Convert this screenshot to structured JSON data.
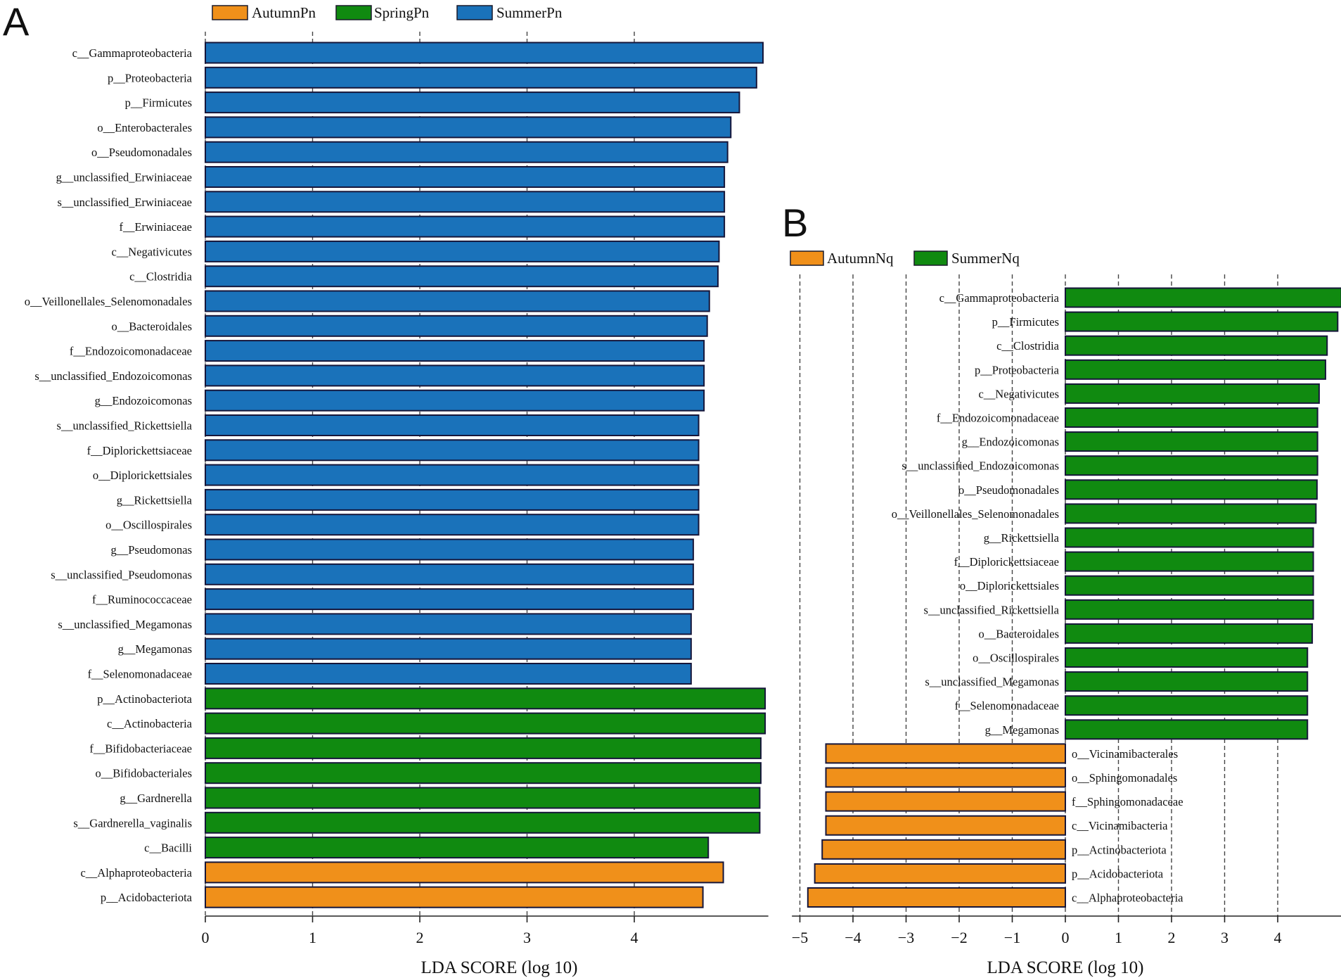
{
  "panels": {
    "A": {
      "label": "A"
    },
    "B": {
      "label": "B"
    }
  },
  "chart_data": [
    {
      "panel": "A",
      "type": "bar",
      "orientation": "horizontal",
      "legend_position": "top",
      "legend": [
        {
          "name": "AutumnPn",
          "color": "#F0901A"
        },
        {
          "name": "SpringPn",
          "color": "#108A10"
        },
        {
          "name": "SummerPn",
          "color": "#1A72BA"
        }
      ],
      "xlabel": "LDA SCORE (log 10)",
      "xlim": [
        0,
        5.25
      ],
      "xticks": [
        0,
        1,
        2,
        3,
        4
      ],
      "xtick_labels": [
        "0",
        "1",
        "2",
        "3",
        "4"
      ],
      "grid": true,
      "bars": [
        {
          "label": "c__Gammaproteobacteria",
          "value": 5.2,
          "group": "SummerPn"
        },
        {
          "label": "p__Proteobacteria",
          "value": 5.14,
          "group": "SummerPn"
        },
        {
          "label": "p__Firmicutes",
          "value": 4.98,
          "group": "SummerPn"
        },
        {
          "label": "o__Enterobacterales",
          "value": 4.9,
          "group": "SummerPn"
        },
        {
          "label": "o__Pseudomonadales",
          "value": 4.87,
          "group": "SummerPn"
        },
        {
          "label": "g__unclassified_Erwiniaceae",
          "value": 4.84,
          "group": "SummerPn"
        },
        {
          "label": "s__unclassified_Erwiniaceae",
          "value": 4.84,
          "group": "SummerPn"
        },
        {
          "label": "f__Erwiniaceae",
          "value": 4.84,
          "group": "SummerPn"
        },
        {
          "label": "c__Negativicutes",
          "value": 4.79,
          "group": "SummerPn"
        },
        {
          "label": "c__Clostridia",
          "value": 4.78,
          "group": "SummerPn"
        },
        {
          "label": "o__Veillonellales_Selenomonadales",
          "value": 4.7,
          "group": "SummerPn"
        },
        {
          "label": "o__Bacteroidales",
          "value": 4.68,
          "group": "SummerPn"
        },
        {
          "label": "f__Endozoicomonadaceae",
          "value": 4.65,
          "group": "SummerPn"
        },
        {
          "label": "s__unclassified_Endozoicomonas",
          "value": 4.65,
          "group": "SummerPn"
        },
        {
          "label": "g__Endozoicomonas",
          "value": 4.65,
          "group": "SummerPn"
        },
        {
          "label": "s__unclassified_Rickettsiella",
          "value": 4.6,
          "group": "SummerPn"
        },
        {
          "label": "f__Diplorickettsiaceae",
          "value": 4.6,
          "group": "SummerPn"
        },
        {
          "label": "o__Diplorickettsiales",
          "value": 4.6,
          "group": "SummerPn"
        },
        {
          "label": "g__Rickettsiella",
          "value": 4.6,
          "group": "SummerPn"
        },
        {
          "label": "o__Oscillospirales",
          "value": 4.6,
          "group": "SummerPn"
        },
        {
          "label": "g__Pseudomonas",
          "value": 4.55,
          "group": "SummerPn"
        },
        {
          "label": "s__unclassified_Pseudomonas",
          "value": 4.55,
          "group": "SummerPn"
        },
        {
          "label": "f__Ruminococcaceae",
          "value": 4.55,
          "group": "SummerPn"
        },
        {
          "label": "s__unclassified_Megamonas",
          "value": 4.53,
          "group": "SummerPn"
        },
        {
          "label": "g__Megamonas",
          "value": 4.53,
          "group": "SummerPn"
        },
        {
          "label": "f__Selenomonadaceae",
          "value": 4.53,
          "group": "SummerPn"
        },
        {
          "label": "p__Actinobacteriota",
          "value": 5.22,
          "group": "SpringPn"
        },
        {
          "label": "c__Actinobacteria",
          "value": 5.22,
          "group": "SpringPn"
        },
        {
          "label": "f__Bifidobacteriaceae",
          "value": 5.18,
          "group": "SpringPn"
        },
        {
          "label": "o__Bifidobacteriales",
          "value": 5.18,
          "group": "SpringPn"
        },
        {
          "label": "g__Gardnerella",
          "value": 5.17,
          "group": "SpringPn"
        },
        {
          "label": "s__Gardnerella_vaginalis",
          "value": 5.17,
          "group": "SpringPn"
        },
        {
          "label": "c__Bacilli",
          "value": 4.69,
          "group": "SpringPn"
        },
        {
          "label": "c__Alphaproteobacteria",
          "value": 4.83,
          "group": "AutumnPn"
        },
        {
          "label": "p__Acidobacteriota",
          "value": 4.64,
          "group": "AutumnPn"
        }
      ]
    },
    {
      "panel": "B",
      "type": "bar",
      "orientation": "horizontal",
      "legend_position": "top-left",
      "legend": [
        {
          "name": "AutumnNq",
          "color": "#F0901A"
        },
        {
          "name": "SummerNq",
          "color": "#108A10"
        }
      ],
      "xlabel": "LDA SCORE (log 10)",
      "xlim": [
        -5.15,
        5.2
      ],
      "xticks": [
        -5,
        -4,
        -3,
        -2,
        -1,
        0,
        1,
        2,
        3,
        4
      ],
      "xtick_labels": [
        "−5",
        "−4",
        "−3",
        "−2",
        "−1",
        "0",
        "1",
        "2",
        "3",
        "4"
      ],
      "grid": true,
      "bars": [
        {
          "label": "c__Gammaproteobacteria",
          "value": 5.2,
          "group": "SummerNq"
        },
        {
          "label": "p__Firmicutes",
          "value": 5.13,
          "group": "SummerNq"
        },
        {
          "label": "c__Clostridia",
          "value": 4.93,
          "group": "SummerNq"
        },
        {
          "label": "p__Proteobacteria",
          "value": 4.9,
          "group": "SummerNq"
        },
        {
          "label": "c__Negativicutes",
          "value": 4.78,
          "group": "SummerNq"
        },
        {
          "label": "f__Endozoicomonadaceae",
          "value": 4.75,
          "group": "SummerNq"
        },
        {
          "label": "g__Endozoicomonas",
          "value": 4.75,
          "group": "SummerNq"
        },
        {
          "label": "s__unclassified_Endozoicomonas",
          "value": 4.75,
          "group": "SummerNq"
        },
        {
          "label": "o__Pseudomonadales",
          "value": 4.74,
          "group": "SummerNq"
        },
        {
          "label": "o__Veillonellales_Selenomonadales",
          "value": 4.72,
          "group": "SummerNq"
        },
        {
          "label": "g__Rickettsiella",
          "value": 4.67,
          "group": "SummerNq"
        },
        {
          "label": "f__Diplorickettsiaceae",
          "value": 4.67,
          "group": "SummerNq"
        },
        {
          "label": "o__Diplorickettsiales",
          "value": 4.67,
          "group": "SummerNq"
        },
        {
          "label": "s__unclassified_Rickettsiella",
          "value": 4.67,
          "group": "SummerNq"
        },
        {
          "label": "o__Bacteroidales",
          "value": 4.65,
          "group": "SummerNq"
        },
        {
          "label": "o__Oscillospirales",
          "value": 4.56,
          "group": "SummerNq"
        },
        {
          "label": "s__unclassified_Megamonas",
          "value": 4.56,
          "group": "SummerNq"
        },
        {
          "label": "f__Selenomonadaceae",
          "value": 4.56,
          "group": "SummerNq"
        },
        {
          "label": "g__Megamonas",
          "value": 4.56,
          "group": "SummerNq"
        },
        {
          "label": "o__Vicinamibacterales",
          "value": -4.51,
          "group": "AutumnNq"
        },
        {
          "label": "o__Sphingomonadales",
          "value": -4.51,
          "group": "AutumnNq"
        },
        {
          "label": "f__Sphingomonadaceae",
          "value": -4.51,
          "group": "AutumnNq"
        },
        {
          "label": "c__Vicinamibacteria",
          "value": -4.51,
          "group": "AutumnNq"
        },
        {
          "label": "p__Actinobacteriota",
          "value": -4.58,
          "group": "AutumnNq"
        },
        {
          "label": "p__Acidobacteriota",
          "value": -4.72,
          "group": "AutumnNq"
        },
        {
          "label": "c__Alphaproteobacteria",
          "value": -4.85,
          "group": "AutumnNq"
        }
      ]
    }
  ]
}
